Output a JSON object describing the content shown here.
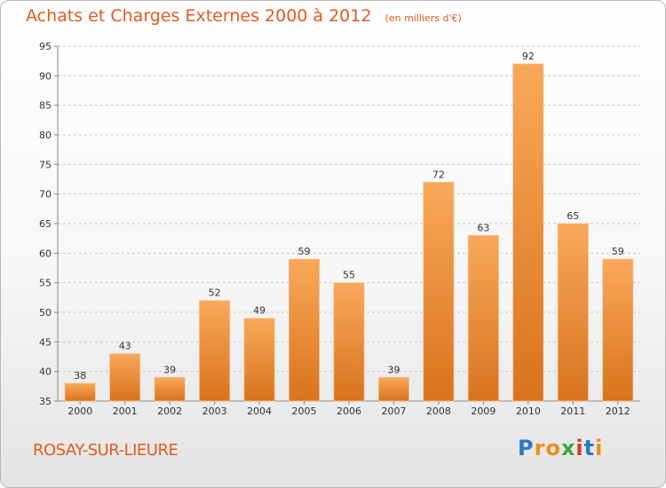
{
  "header": {
    "title": "Achats et Charges Externes 2000 à 2012",
    "unit": "(en milliers d'€)"
  },
  "footer": {
    "city": "ROSAY-SUR-LIEURE",
    "logo_letters": [
      "P",
      "r",
      "o",
      "x",
      "i",
      "t",
      "i"
    ],
    "logo_colors": [
      "#2f77c8",
      "#e8901a",
      "#e8901a",
      "#3aa83a",
      "#d83a2a",
      "#2f77c8",
      "#e8901a"
    ]
  },
  "colors": {
    "bar_light": "#f9a85a",
    "bar_dark": "#d9731e",
    "accent": "#e35b1f",
    "grid": "#c8c8c8"
  },
  "chart_data": {
    "type": "bar",
    "title": "Achats et Charges Externes 2000 à 2012",
    "subtitle": "(en milliers d'€)",
    "categories": [
      "2000",
      "2001",
      "2002",
      "2003",
      "2004",
      "2005",
      "2006",
      "2007",
      "2008",
      "2009",
      "2010",
      "2011",
      "2012"
    ],
    "values": [
      38,
      43,
      39,
      52,
      49,
      59,
      55,
      39,
      72,
      63,
      92,
      65,
      59
    ],
    "data_labels": [
      "38",
      "43",
      "39",
      "52",
      "49",
      "59",
      "55",
      "39",
      "72",
      "63",
      "92",
      "65",
      "59"
    ],
    "ylim": [
      35,
      95
    ],
    "yticks": [
      35,
      40,
      45,
      50,
      55,
      60,
      65,
      70,
      75,
      80,
      85,
      90,
      95
    ],
    "ytick_labels": [
      "35",
      "40",
      "45",
      "50",
      "55",
      "60",
      "65",
      "70",
      "75",
      "80",
      "85",
      "90",
      "95"
    ],
    "grid": true,
    "grid_style": "dashed-horizontal",
    "legend": "none"
  }
}
